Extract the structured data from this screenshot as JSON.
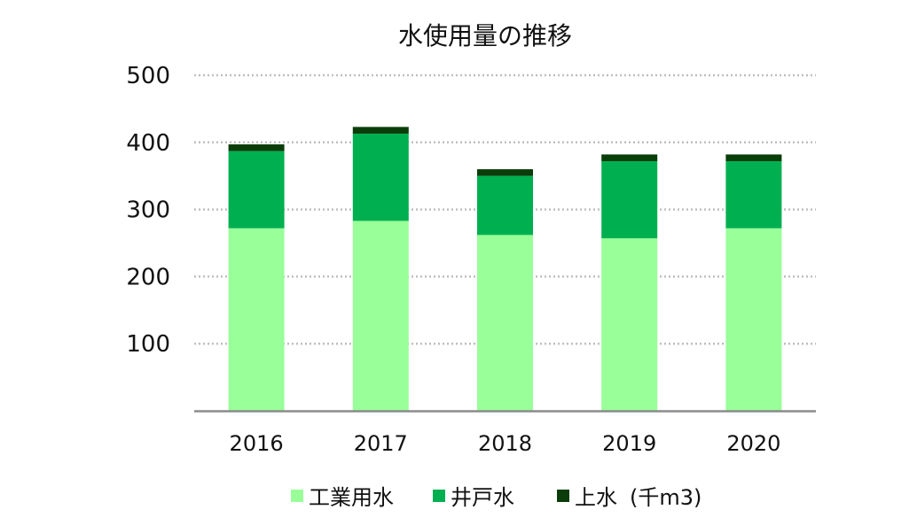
{
  "chart_data": {
    "type": "bar",
    "stacked": true,
    "title": "水使用量の推移",
    "categories": [
      "2016",
      "2017",
      "2018",
      "2019",
      "2020"
    ],
    "series": [
      {
        "name": "工業用水",
        "color": "#99FF99",
        "values": [
          272,
          283,
          262,
          257,
          272
        ]
      },
      {
        "name": "井戸水",
        "color": "#00B050",
        "values": [
          115,
          130,
          88,
          115,
          100
        ]
      },
      {
        "name": "上水",
        "color": "#0A3D0A",
        "values": [
          10,
          10,
          10,
          10,
          10
        ]
      }
    ],
    "yticks": [
      "100",
      "200",
      "300",
      "400",
      "500"
    ],
    "ylim": [
      0,
      500
    ],
    "grid": true,
    "legend_position": "bottom",
    "legend_unit": "(千m3)"
  }
}
